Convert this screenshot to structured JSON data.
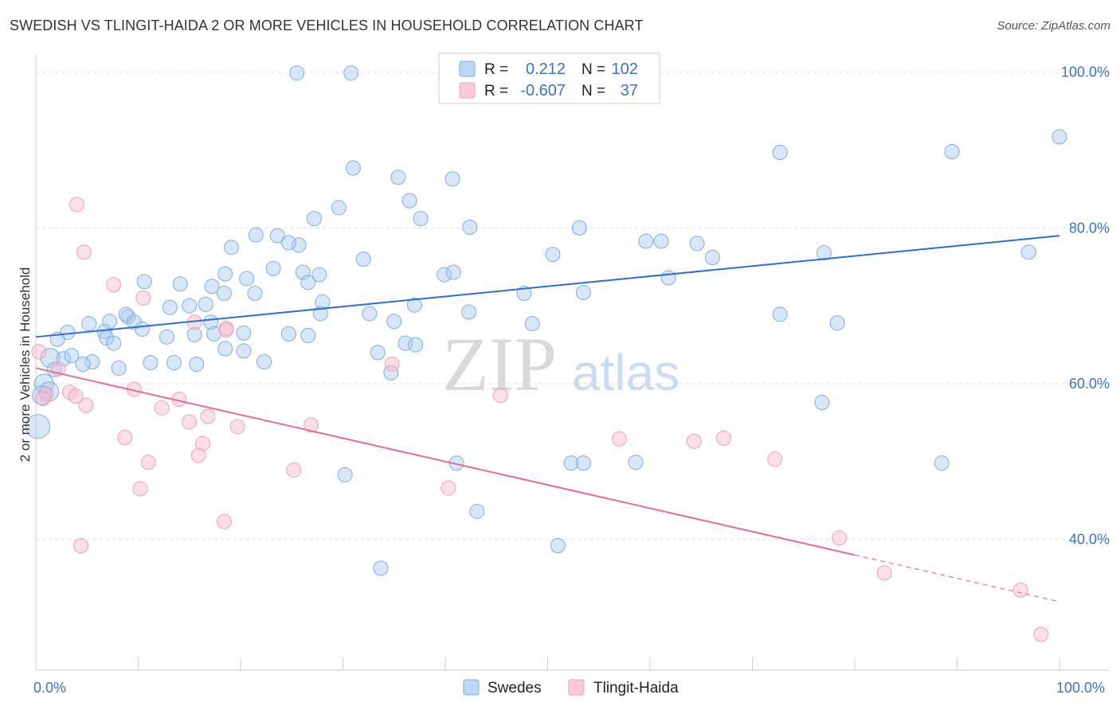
{
  "title": "SWEDISH VS TLINGIT-HAIDA 2 OR MORE VEHICLES IN HOUSEHOLD CORRELATION CHART",
  "source": "Source: ZipAtlas.com",
  "watermark": {
    "zip": "ZIP",
    "atlas": "atlas"
  },
  "chart_data": {
    "type": "scatter",
    "ylabel": "2 or more Vehicles in Household",
    "x_ticks": [
      "0.0%",
      "100.0%"
    ],
    "y_ticks": [
      {
        "value": 40,
        "label": "40.0%"
      },
      {
        "value": 60,
        "label": "60.0%"
      },
      {
        "value": 80,
        "label": "80.0%"
      },
      {
        "value": 100,
        "label": "100.0%"
      }
    ],
    "xlim": [
      0,
      100
    ],
    "ylim": [
      20,
      102
    ],
    "grid": "horizontal dashed",
    "legend_position": "top-center",
    "colors": {
      "swedes": "#7aaee6",
      "swedes_line": "#2f6fca",
      "tlingit": "#f0a0bb",
      "tlingit_line": "#e0709a"
    },
    "stats": [
      {
        "r_label": "R =",
        "r": "0.212",
        "n_label": "N =",
        "n": "102"
      },
      {
        "r_label": "R =",
        "r": "-0.607",
        "n_label": "N =",
        "n": "37"
      }
    ],
    "series": [
      {
        "name": "Swedes",
        "trend": {
          "x0": 0,
          "y0": 66.0,
          "x1": 100,
          "y1": 79.0
        },
        "points": [
          [
            25.5,
            99.9
          ],
          [
            30.8,
            99.9
          ],
          [
            57.3,
            97.0
          ],
          [
            100,
            91.7
          ],
          [
            72.7,
            89.7
          ],
          [
            89.5,
            89.8
          ],
          [
            31.0,
            87.7
          ],
          [
            35.4,
            86.5
          ],
          [
            40.7,
            86.3
          ],
          [
            36.5,
            83.5
          ],
          [
            29.6,
            82.6
          ],
          [
            27.2,
            81.2
          ],
          [
            37.6,
            81.2
          ],
          [
            42.4,
            80.1
          ],
          [
            53.1,
            80.0
          ],
          [
            21.5,
            79.1
          ],
          [
            23.6,
            79.0
          ],
          [
            25.7,
            77.8
          ],
          [
            19.1,
            77.5
          ],
          [
            24.7,
            78.1
          ],
          [
            50.5,
            76.6
          ],
          [
            32.0,
            76.0
          ],
          [
            59.6,
            78.3
          ],
          [
            61.1,
            78.3
          ],
          [
            64.6,
            78.0
          ],
          [
            66.1,
            76.2
          ],
          [
            77.0,
            76.8
          ],
          [
            23.2,
            74.8
          ],
          [
            26.1,
            74.3
          ],
          [
            18.5,
            74.1
          ],
          [
            27.7,
            74.0
          ],
          [
            39.9,
            74.0
          ],
          [
            40.8,
            74.3
          ],
          [
            61.8,
            73.6
          ],
          [
            20.6,
            73.5
          ],
          [
            26.6,
            73.0
          ],
          [
            10.6,
            73.1
          ],
          [
            14.1,
            72.8
          ],
          [
            17.2,
            72.5
          ],
          [
            18.4,
            71.6
          ],
          [
            21.4,
            71.6
          ],
          [
            53.5,
            71.7
          ],
          [
            47.7,
            71.6
          ],
          [
            28.0,
            70.5
          ],
          [
            27.8,
            69.0
          ],
          [
            32.6,
            69.0
          ],
          [
            37.0,
            70.1
          ],
          [
            42.3,
            69.2
          ],
          [
            72.7,
            68.9
          ],
          [
            7.2,
            68.0
          ],
          [
            9.0,
            68.6
          ],
          [
            8.8,
            68.9
          ],
          [
            9.6,
            67.9
          ],
          [
            13.1,
            69.8
          ],
          [
            15.0,
            70.0
          ],
          [
            16.6,
            70.2
          ],
          [
            17.1,
            67.9
          ],
          [
            10.4,
            67.0
          ],
          [
            5.2,
            67.7
          ],
          [
            6.7,
            66.7
          ],
          [
            6.9,
            65.9
          ],
          [
            7.6,
            65.2
          ],
          [
            12.8,
            66.0
          ],
          [
            15.5,
            66.3
          ],
          [
            17.4,
            66.4
          ],
          [
            20.3,
            66.5
          ],
          [
            24.7,
            66.4
          ],
          [
            26.6,
            66.2
          ],
          [
            35.0,
            68.0
          ],
          [
            48.5,
            67.7
          ],
          [
            78.3,
            67.8
          ],
          [
            97.0,
            76.9
          ],
          [
            18.5,
            64.5
          ],
          [
            20.3,
            64.2
          ],
          [
            33.4,
            64.0
          ],
          [
            36.1,
            65.2
          ],
          [
            37.1,
            65.0
          ],
          [
            3.1,
            66.6
          ],
          [
            2.1,
            65.7
          ],
          [
            2.7,
            63.2
          ],
          [
            3.5,
            63.6
          ],
          [
            1.4,
            63.3
          ],
          [
            5.5,
            62.8
          ],
          [
            4.6,
            62.5
          ],
          [
            11.2,
            62.7
          ],
          [
            13.5,
            62.7
          ],
          [
            1.8,
            61.8
          ],
          [
            15.7,
            62.5
          ],
          [
            8.1,
            62.0
          ],
          [
            22.3,
            62.8
          ],
          [
            34.7,
            61.4
          ],
          [
            0.8,
            60.0
          ],
          [
            1.3,
            59.0
          ],
          [
            0.6,
            58.5
          ],
          [
            0.2,
            54.5
          ],
          [
            41.1,
            49.8
          ],
          [
            52.3,
            49.8
          ],
          [
            53.5,
            49.8
          ],
          [
            58.6,
            49.9
          ],
          [
            76.8,
            57.6
          ],
          [
            88.5,
            49.8
          ],
          [
            30.2,
            48.3
          ],
          [
            43.1,
            43.6
          ],
          [
            51.0,
            39.2
          ],
          [
            33.7,
            36.3
          ]
        ]
      },
      {
        "name": "Tlingit-Haida",
        "trend": {
          "x0": 0,
          "y0": 62.0,
          "x1": 100,
          "y1": 32.0
        },
        "trend_solid_until": 80,
        "points": [
          [
            4.0,
            83.0
          ],
          [
            4.7,
            76.9
          ],
          [
            7.6,
            72.7
          ],
          [
            10.5,
            71.0
          ],
          [
            15.5,
            67.9
          ],
          [
            18.6,
            67.1
          ],
          [
            18.6,
            66.9
          ],
          [
            0.3,
            64.1
          ],
          [
            2.2,
            61.9
          ],
          [
            3.3,
            58.9
          ],
          [
            3.9,
            58.4
          ],
          [
            4.9,
            57.2
          ],
          [
            12.3,
            56.9
          ],
          [
            14.0,
            58.0
          ],
          [
            16.8,
            55.8
          ],
          [
            9.6,
            59.3
          ],
          [
            1.0,
            58.7
          ],
          [
            0.7,
            58.1
          ],
          [
            8.7,
            53.1
          ],
          [
            15.0,
            55.1
          ],
          [
            16.3,
            52.3
          ],
          [
            19.7,
            54.5
          ],
          [
            26.9,
            54.7
          ],
          [
            15.9,
            50.8
          ],
          [
            25.2,
            48.9
          ],
          [
            34.8,
            62.5
          ],
          [
            45.4,
            58.5
          ],
          [
            57.0,
            52.9
          ],
          [
            64.3,
            52.6
          ],
          [
            67.2,
            53.0
          ],
          [
            72.2,
            50.3
          ],
          [
            40.3,
            46.6
          ],
          [
            11.0,
            49.9
          ],
          [
            10.2,
            46.5
          ],
          [
            18.4,
            42.3
          ],
          [
            4.4,
            39.2
          ],
          [
            78.5,
            40.2
          ],
          [
            82.9,
            35.7
          ],
          [
            96.2,
            33.5
          ],
          [
            98.2,
            27.8
          ]
        ]
      }
    ]
  },
  "bottom_legend": [
    "Swedes",
    "Tlingit-Haida"
  ]
}
